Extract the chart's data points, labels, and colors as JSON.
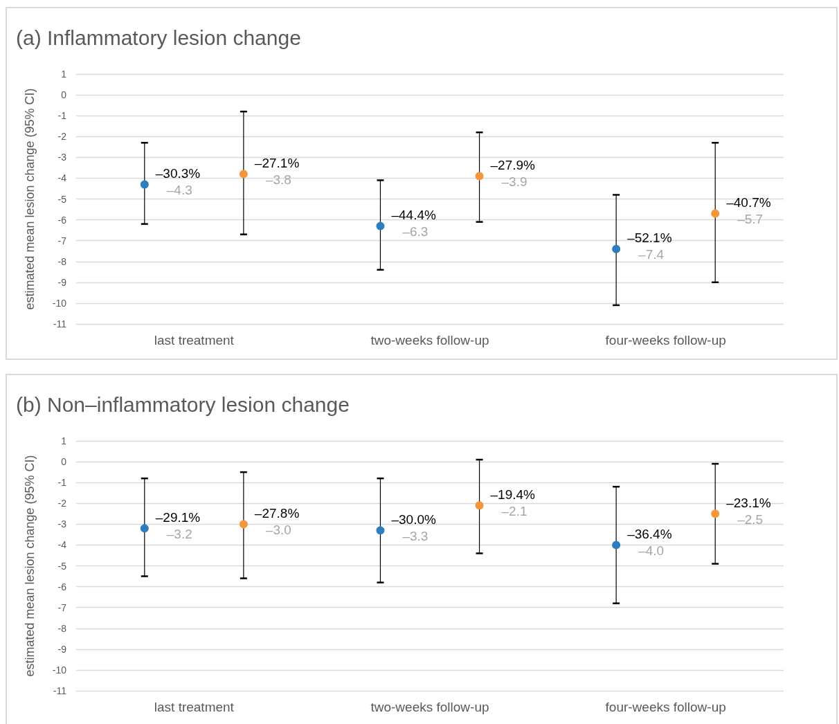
{
  "chart_data": [
    {
      "type": "scatter",
      "title": "(a) Inflammatory lesion change",
      "ylabel": "estimated mean lesion change (95% CI)",
      "categories": [
        "last treatment",
        "two-weeks follow-up",
        "four-weeks follow-up"
      ],
      "series": [
        {
          "color": "#2e7ebf",
          "values": [
            -4.3,
            -6.3,
            -7.4
          ],
          "errors": [
            [
              -6.2,
              -2.3
            ],
            [
              -8.4,
              -4.1
            ],
            [
              -10.1,
              -4.8
            ]
          ],
          "value_labels": [
            "–30.3%\n–4.3",
            "–44.4%\n–6.3",
            "–52.1%\n–7.4"
          ]
        },
        {
          "color": "#f5963a",
          "values": [
            -3.8,
            -3.9,
            -5.7
          ],
          "errors": [
            [
              -6.7,
              -0.8
            ],
            [
              -6.1,
              -1.8
            ],
            [
              -9.0,
              -2.3
            ]
          ],
          "value_labels": [
            "–27.1%\n–3.8",
            "–27.9%\n–3.9",
            "–40.7%\n–5.7"
          ]
        }
      ],
      "ylim": [
        -11,
        1
      ],
      "yticks": [
        -11,
        -10,
        -9,
        -8,
        -7,
        -6,
        -5,
        -4,
        -3,
        -2,
        -1,
        0,
        1
      ],
      "grid": "y",
      "marker": "circle"
    },
    {
      "type": "scatter",
      "title": "(b) Non–inflammatory lesion change",
      "ylabel": "estimated mean lesion change (95% CI)",
      "categories": [
        "last treatment",
        "two-weeks follow-up",
        "four-weeks follow-up"
      ],
      "series": [
        {
          "color": "#2e7ebf",
          "values": [
            -3.2,
            -3.3,
            -4.0
          ],
          "errors": [
            [
              -5.5,
              -0.8
            ],
            [
              -5.8,
              -0.8
            ],
            [
              -6.8,
              -1.2
            ]
          ],
          "value_labels": [
            "–29.1%\n–3.2",
            "–30.0%\n–3.3",
            "–36.4%\n–4.0"
          ]
        },
        {
          "color": "#f5963a",
          "values": [
            -3.0,
            -2.1,
            -2.5
          ],
          "errors": [
            [
              -5.6,
              -0.5
            ],
            [
              -4.4,
              0.1
            ],
            [
              -4.9,
              -0.1
            ]
          ],
          "value_labels": [
            "–27.8%\n–3.0",
            "–19.4%\n–2.1",
            "–23.1%\n–2.5"
          ]
        }
      ],
      "ylim": [
        -11,
        1
      ],
      "yticks": [
        -11,
        -10,
        -9,
        -8,
        -7,
        -6,
        -5,
        -4,
        -3,
        -2,
        -1,
        0,
        1
      ],
      "grid": "y",
      "marker": "circle"
    }
  ]
}
